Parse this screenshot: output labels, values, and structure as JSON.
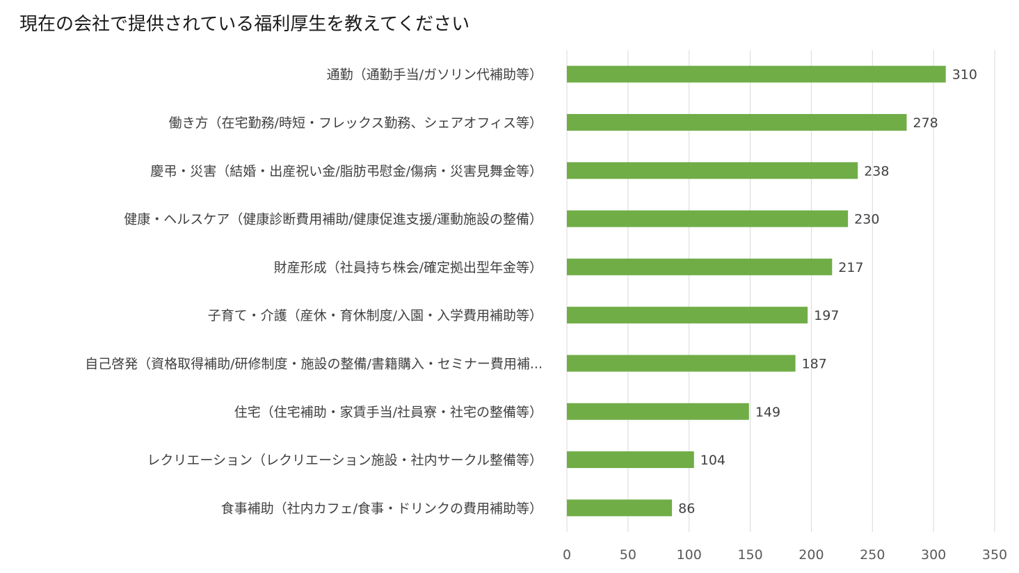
{
  "chart_data": {
    "type": "bar",
    "orientation": "horizontal",
    "title": "現在の会社で提供されている福利厚生を教えてください",
    "categories": [
      "通勤（通勤手当/ガソリン代補助等）",
      "働き方（在宅勤務/時短・フレックス勤務、シェアオフィス等）",
      "慶弔・災害（結婚・出産祝い金/脂肪弔慰金/傷病・災害見舞金等）",
      "健康・ヘルスケア（健康診断費用補助/健康促進支援/運動施設の整備）",
      "財産形成（社員持ち株会/確定拠出型年金等）",
      "子育て・介護（産休・育休制度/入園・入学費用補助等）",
      "自己啓発（資格取得補助/研修制度・施設の整備/書籍購入・セミナー費用補...",
      "住宅（住宅補助・家賃手当/社員寮・社宅の整備等）",
      "レクリエーション（レクリエーション施設・社内サークル整備等）",
      "食事補助（社内カフェ/食事・ドリンクの費用補助等）"
    ],
    "values": [
      310,
      278,
      238,
      230,
      217,
      197,
      187,
      149,
      104,
      86
    ],
    "xlim": [
      0,
      350
    ],
    "xticks": [
      0,
      50,
      100,
      150,
      200,
      250,
      300,
      350
    ],
    "xlabel": "",
    "ylabel": "",
    "bar_color": "#70ad47",
    "grid": true,
    "data_labels": true,
    "legend": "none"
  }
}
